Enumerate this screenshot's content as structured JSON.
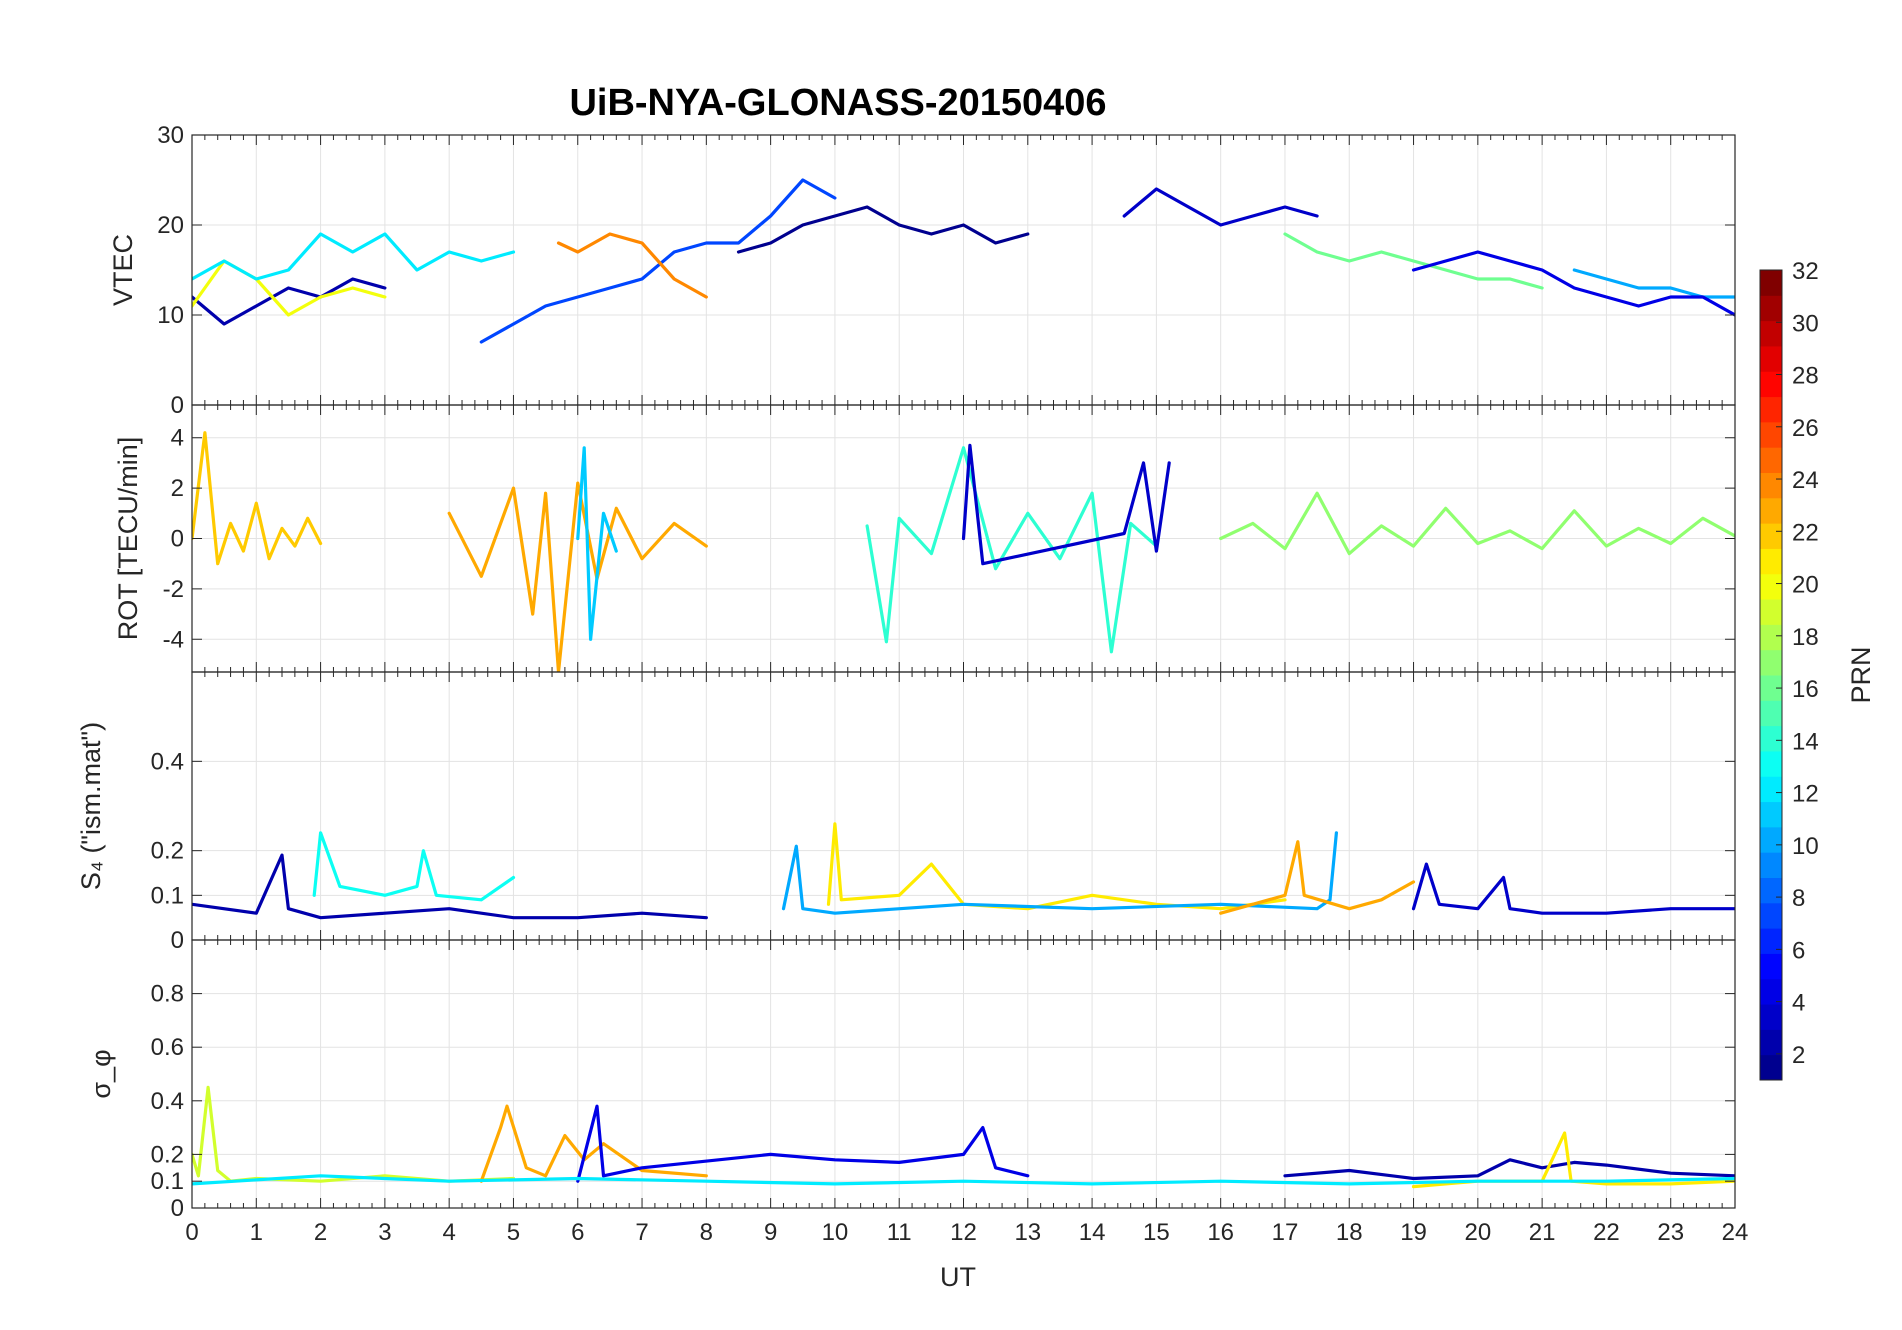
{
  "title": "UiB-NYA-GLONASS-20150406",
  "xlabel": "UT",
  "colorbar": {
    "label": "PRN",
    "min": 1,
    "max": 32,
    "tick_labels": [
      "2",
      "4",
      "6",
      "8",
      "10",
      "12",
      "14",
      "16",
      "18",
      "20",
      "22",
      "24",
      "26",
      "28",
      "30",
      "32"
    ],
    "colormap": [
      "#00008f",
      "#0000ff",
      "#0080ff",
      "#00ffff",
      "#80ff80",
      "#ffff00",
      "#ff8000",
      "#ff0000",
      "#800000"
    ]
  },
  "chart_data": [
    {
      "type": "line",
      "name": "vtec",
      "ylabel": "VTEC",
      "xlim": [
        0,
        24
      ],
      "ylim": [
        0,
        30
      ],
      "yticks": [
        "0",
        "10",
        "20",
        "30"
      ],
      "xticks": [
        "0",
        "1",
        "2",
        "3",
        "4",
        "5",
        "6",
        "7",
        "8",
        "9",
        "10",
        "11",
        "12",
        "13",
        "14",
        "15",
        "16",
        "17",
        "18",
        "19",
        "20",
        "21",
        "22",
        "23",
        "24"
      ],
      "show_xticklabels": false,
      "series": [
        {
          "prn": 2,
          "x": [
            0,
            0.5,
            1,
            1.5,
            2,
            2.5,
            3
          ],
          "y": [
            12,
            9,
            11,
            13,
            12,
            14,
            13
          ]
        },
        {
          "prn": 1,
          "x": [
            8.5,
            9,
            9.5,
            10,
            10.5,
            11,
            11.5,
            12,
            12.5,
            13
          ],
          "y": [
            17,
            18,
            20,
            21,
            22,
            20,
            19,
            20,
            18,
            19
          ]
        },
        {
          "prn": 3,
          "x": [
            14.5,
            15,
            15.5,
            16,
            16.5,
            17,
            17.5
          ],
          "y": [
            21,
            24,
            22,
            20,
            21,
            22,
            21
          ]
        },
        {
          "prn": 20,
          "x": [
            0,
            0.5,
            1,
            1.5,
            2,
            2.5,
            3
          ],
          "y": [
            11,
            16,
            14,
            10,
            12,
            13,
            12
          ]
        },
        {
          "prn": 7,
          "x": [
            4.5,
            5,
            5.5,
            6,
            6.5,
            7,
            7.5,
            8,
            8.5,
            9,
            9.5,
            10
          ],
          "y": [
            7,
            9,
            11,
            12,
            13,
            14,
            17,
            18,
            18,
            21,
            25,
            23
          ]
        },
        {
          "prn": 24,
          "x": [
            5.7,
            6,
            6.5,
            7,
            7.5,
            8
          ],
          "y": [
            18,
            17,
            19,
            18,
            14,
            12
          ]
        },
        {
          "prn": 12,
          "x": [
            0,
            0.5,
            1,
            1.5,
            2,
            2.5,
            3,
            3.5,
            4,
            4.5,
            5
          ],
          "y": [
            14,
            16,
            14,
            15,
            19,
            17,
            19,
            15,
            17,
            16,
            17
          ]
        },
        {
          "prn": 16,
          "x": [
            17,
            17.5,
            18,
            18.5,
            19,
            19.5,
            20,
            20.5,
            21
          ],
          "y": [
            19,
            17,
            16,
            17,
            16,
            15,
            14,
            14,
            13
          ]
        },
        {
          "prn": 10,
          "x": [
            21.5,
            22,
            22.5,
            23,
            23.5,
            24
          ],
          "y": [
            15,
            14,
            13,
            13,
            12,
            12
          ]
        },
        {
          "prn": 4,
          "x": [
            19,
            19.5,
            20,
            20.5,
            21,
            21.5,
            22,
            22.5,
            23,
            23.5,
            24
          ],
          "y": [
            15,
            16,
            17,
            16,
            15,
            13,
            12,
            11,
            12,
            12,
            10
          ]
        }
      ]
    },
    {
      "type": "line",
      "name": "rot",
      "ylabel": "ROT [TECU/min]",
      "xlim": [
        0,
        24
      ],
      "ylim": [
        -5.3,
        5.3
      ],
      "yticks": [
        "-4",
        "-2",
        "0",
        "2",
        "4"
      ],
      "show_xticklabels": false,
      "series": [
        {
          "prn": 22,
          "x": [
            0,
            0.2,
            0.4,
            0.6,
            0.8,
            1,
            1.2,
            1.4,
            1.6,
            1.8,
            2
          ],
          "y": [
            0,
            4.2,
            -1,
            0.6,
            -0.5,
            1.4,
            -0.8,
            0.4,
            -0.3,
            0.8,
            -0.2
          ]
        },
        {
          "prn": 23,
          "x": [
            4,
            4.5,
            5,
            5.3,
            5.5,
            5.7,
            6,
            6.3,
            6.6,
            7,
            7.5,
            8
          ],
          "y": [
            1,
            -1.5,
            2,
            -3,
            1.8,
            -5.3,
            2.2,
            -1.6,
            1.2,
            -0.8,
            0.6,
            -0.3
          ]
        },
        {
          "prn": 11,
          "x": [
            6,
            6.1,
            6.2,
            6.4,
            6.6
          ],
          "y": [
            0,
            3.6,
            -4,
            1,
            -0.5
          ]
        },
        {
          "prn": 14,
          "x": [
            10.5,
            10.8,
            11,
            11.5,
            12,
            12.5,
            13,
            13.5,
            14,
            14.3,
            14.6,
            15
          ],
          "y": [
            0.5,
            -4.1,
            0.8,
            -0.6,
            3.6,
            -1.2,
            1,
            -0.8,
            1.8,
            -4.5,
            0.6,
            -0.3
          ]
        },
        {
          "prn": 3,
          "x": [
            12,
            12.1,
            12.3,
            14.5,
            14.8,
            15,
            15.2
          ],
          "y": [
            0,
            3.7,
            -1,
            0.2,
            3,
            -0.5,
            3
          ]
        },
        {
          "prn": 17,
          "x": [
            16,
            16.5,
            17,
            17.5,
            18,
            18.5,
            19,
            19.5,
            20,
            20.5,
            21,
            21.5,
            22,
            22.5,
            23,
            23.5,
            24
          ],
          "y": [
            0,
            0.6,
            -0.4,
            1.8,
            -0.6,
            0.5,
            -0.3,
            1.2,
            -0.2,
            0.3,
            -0.4,
            1.1,
            -0.3,
            0.4,
            -0.2,
            0.8,
            0.1
          ]
        }
      ]
    },
    {
      "type": "line",
      "name": "s4",
      "ylabel": "S₄ (\"ism.mat\")",
      "xlim": [
        0,
        24
      ],
      "ylim": [
        0,
        0.6
      ],
      "yticks": [
        "0",
        "0.1",
        "0.2",
        "0.4"
      ],
      "show_xticklabels": false,
      "series": [
        {
          "prn": 2,
          "x": [
            0,
            1,
            1.4,
            1.5,
            2,
            3,
            4,
            5,
            6,
            7,
            8
          ],
          "y": [
            0.08,
            0.06,
            0.19,
            0.07,
            0.05,
            0.06,
            0.07,
            0.05,
            0.05,
            0.06,
            0.05
          ]
        },
        {
          "prn": 13,
          "x": [
            1.9,
            2,
            2.3,
            3,
            3.5,
            3.6,
            3.8,
            4.5,
            5
          ],
          "y": [
            0.1,
            0.24,
            0.12,
            0.1,
            0.12,
            0.2,
            0.1,
            0.09,
            0.14
          ]
        },
        {
          "prn": 21,
          "x": [
            9.9,
            10,
            10.1,
            11,
            11.5,
            12,
            13,
            14,
            15,
            16,
            17
          ],
          "y": [
            0.08,
            0.26,
            0.09,
            0.1,
            0.17,
            0.08,
            0.07,
            0.1,
            0.08,
            0.07,
            0.09
          ]
        },
        {
          "prn": 10,
          "x": [
            9.2,
            9.4,
            9.5,
            10,
            12,
            14,
            16,
            17.5,
            17.7,
            17.8
          ],
          "y": [
            0.07,
            0.21,
            0.07,
            0.06,
            0.08,
            0.07,
            0.08,
            0.07,
            0.09,
            0.24
          ]
        },
        {
          "prn": 23,
          "x": [
            16,
            16.5,
            17,
            17.2,
            17.3,
            18,
            18.5,
            19
          ],
          "y": [
            0.06,
            0.08,
            0.1,
            0.22,
            0.1,
            0.07,
            0.09,
            0.13
          ]
        },
        {
          "prn": 3,
          "x": [
            19,
            19.2,
            19.4,
            20,
            20.4,
            20.5,
            21,
            22,
            23,
            24
          ],
          "y": [
            0.07,
            0.17,
            0.08,
            0.07,
            0.14,
            0.07,
            0.06,
            0.06,
            0.07,
            0.07
          ]
        }
      ]
    },
    {
      "type": "line",
      "name": "sigma_phi",
      "ylabel": "σ_φ",
      "xlim": [
        0,
        24
      ],
      "ylim": [
        0,
        1
      ],
      "yticks": [
        "0",
        "0.1",
        "0.2",
        "0.4",
        "0.6",
        "0.8"
      ],
      "show_xticklabels": true,
      "series": [
        {
          "prn": 19,
          "x": [
            0,
            0.1,
            0.25,
            0.4,
            0.6,
            1,
            2,
            3,
            4,
            5
          ],
          "y": [
            0.2,
            0.12,
            0.45,
            0.14,
            0.1,
            0.11,
            0.1,
            0.12,
            0.1,
            0.11
          ]
        },
        {
          "prn": 23,
          "x": [
            4.5,
            4.8,
            4.9,
            5.2,
            5.5,
            5.8,
            6.1,
            6.4,
            7,
            8
          ],
          "y": [
            0.1,
            0.3,
            0.38,
            0.15,
            0.12,
            0.27,
            0.18,
            0.24,
            0.14,
            0.12
          ]
        },
        {
          "prn": 4,
          "x": [
            6,
            6.3,
            6.4,
            7,
            9,
            10,
            11,
            12,
            12.3,
            12.5,
            13
          ],
          "y": [
            0.1,
            0.38,
            0.12,
            0.15,
            0.2,
            0.18,
            0.17,
            0.2,
            0.3,
            0.15,
            0.12
          ]
        },
        {
          "prn": 2,
          "x": [
            17,
            18,
            19,
            20,
            20.5,
            21,
            21.5,
            22,
            23,
            24
          ],
          "y": [
            0.12,
            0.14,
            0.11,
            0.12,
            0.18,
            0.15,
            0.17,
            0.16,
            0.13,
            0.12
          ]
        },
        {
          "prn": 21,
          "x": [
            19,
            20,
            21,
            21.35,
            21.45,
            22,
            23,
            24
          ],
          "y": [
            0.08,
            0.1,
            0.1,
            0.28,
            0.1,
            0.09,
            0.09,
            0.1
          ]
        },
        {
          "prn": 12,
          "x": [
            0,
            2,
            4,
            6,
            8,
            10,
            12,
            14,
            16,
            18,
            20,
            22,
            24
          ],
          "y": [
            0.09,
            0.12,
            0.1,
            0.11,
            0.1,
            0.09,
            0.1,
            0.09,
            0.1,
            0.09,
            0.1,
            0.1,
            0.11
          ]
        }
      ]
    }
  ]
}
